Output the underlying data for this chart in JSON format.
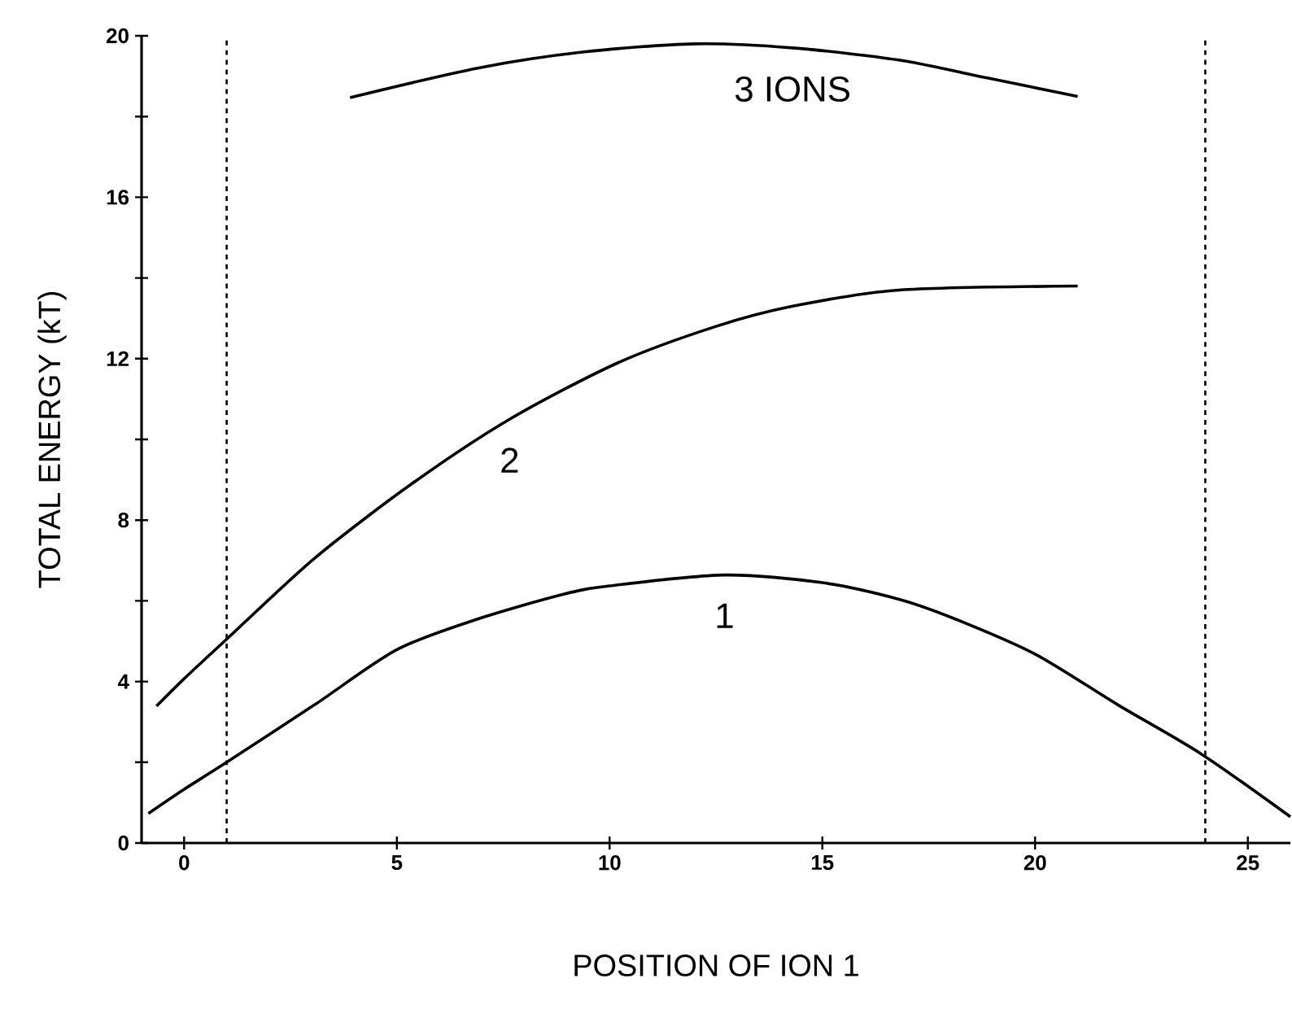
{
  "chart_data": {
    "type": "line",
    "xlabel": "POSITION OF ION 1",
    "ylabel": "TOTAL ENERGY (kT)",
    "xlim": [
      -1,
      26
    ],
    "ylim": [
      0,
      20
    ],
    "xticks": [
      0,
      5,
      10,
      15,
      20,
      25
    ],
    "yticks": [
      0,
      {
        "value": 2,
        "label": null
      },
      4,
      {
        "value": 6,
        "label": null
      },
      8,
      {
        "value": 10,
        "label": null
      },
      12,
      {
        "value": 14,
        "label": null
      },
      16,
      {
        "value": 18,
        "label": null
      },
      20
    ],
    "marker": "none",
    "line_style": "solid",
    "series": [
      {
        "name": "3 IONS",
        "color": "#000000",
        "x": [
          3.9,
          6.9,
          9.4,
          12,
          14.3,
          16.8,
          18.9,
          21.0
        ],
        "values": [
          18.47,
          19.2,
          19.6,
          19.8,
          19.7,
          19.4,
          18.95,
          18.5
        ]
      },
      {
        "name": "2",
        "color": "#000000",
        "x": [
          -0.65,
          0,
          1.03,
          3.06,
          5.35,
          7.65,
          10.2,
          12.5,
          14.3,
          16.8,
          21.0
        ],
        "values": [
          3.39,
          4.07,
          5.08,
          7.05,
          8.9,
          10.5,
          11.9,
          12.8,
          13.3,
          13.7,
          13.8
        ]
      },
      {
        "name": "1",
        "color": "#000000",
        "x": [
          -0.84,
          0,
          1.0,
          3.06,
          5,
          6.9,
          8.9,
          10,
          12.7,
          15,
          16.8,
          18.1,
          20,
          21.95,
          23.9,
          26.0
        ],
        "values": [
          0.73,
          1.33,
          2.0,
          3.42,
          4.79,
          5.55,
          6.16,
          6.37,
          6.64,
          6.45,
          6.04,
          5.56,
          4.68,
          3.42,
          2.21,
          0.65
        ]
      }
    ],
    "ref_lines": [
      {
        "axis": "x",
        "value": 1,
        "line_style": "dashed"
      },
      {
        "axis": "x",
        "value": 24,
        "line_style": "dashed"
      }
    ]
  }
}
